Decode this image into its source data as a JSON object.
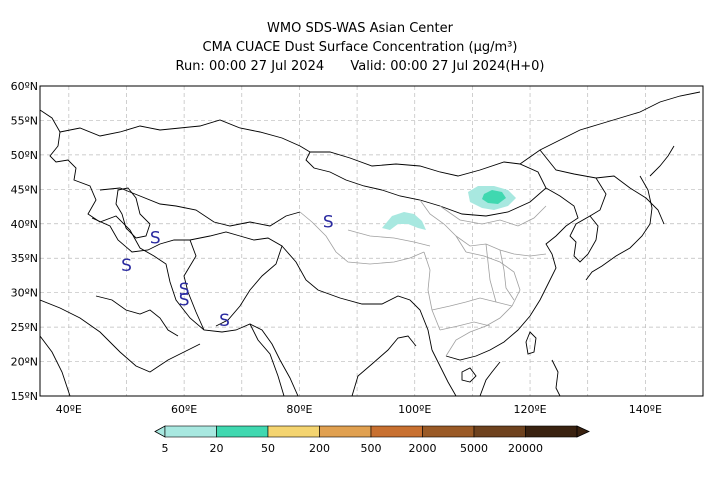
{
  "header": {
    "line1": "WMO SDS-WAS Asian Center",
    "line2": "CMA CUACE Dust Surface Concentration (μg/m³)",
    "run": "Run: 00:00 27 Jul 2024",
    "valid": "Valid: 00:00 27 Jul 2024(H+0)"
  },
  "map": {
    "lat_labels": [
      "60ºN",
      "55ºN",
      "50ºN",
      "45ºN",
      "40ºN",
      "35ºN",
      "30ºN",
      "25ºN",
      "20ºN",
      "15ºN"
    ],
    "lon_labels": [
      "40ºE",
      "60ºE",
      "80ºE",
      "100ºE",
      "120ºE",
      "140ºE"
    ],
    "extent": {
      "lon": [
        35,
        150
      ],
      "lat": [
        15,
        60
      ]
    },
    "storm_marker": "S",
    "storm_markers_lonlat": [
      [
        55,
        38
      ],
      [
        50,
        34
      ],
      [
        60,
        30.5
      ],
      [
        60,
        29
      ],
      [
        67,
        26
      ],
      [
        85,
        40.3
      ]
    ],
    "colors": {
      "coast": "#000000",
      "china_provinces": "#a0a0a0",
      "grid": "#bbbbbb",
      "marker": "#2a2aa0"
    }
  },
  "legend": {
    "labels": [
      "5",
      "20",
      "50",
      "200",
      "500",
      "2000",
      "5000",
      "20000"
    ],
    "colors": [
      "#a8e8e0",
      "#40d8b0",
      "#f4d470",
      "#e0a050",
      "#c87030",
      "#9a5a26",
      "#6e421e",
      "#3a2210"
    ]
  }
}
